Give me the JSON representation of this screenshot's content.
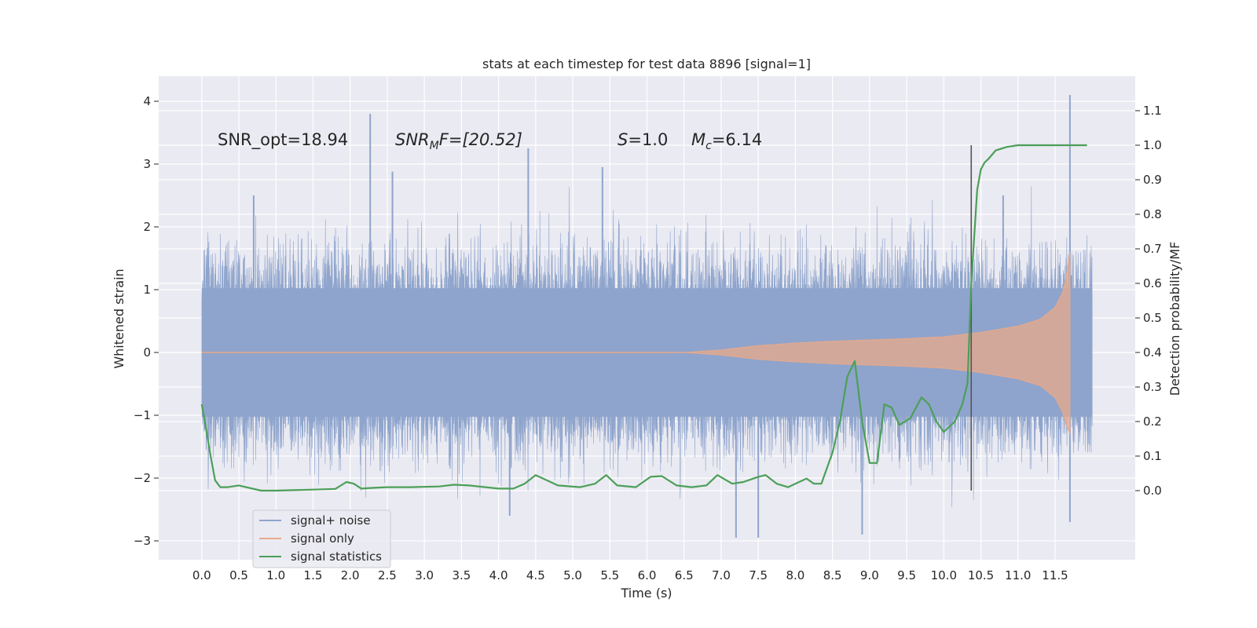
{
  "chart_data": {
    "type": "line",
    "title": "stats at each timestep for test data 8896 [signal=1]",
    "xlabel": "Time (s)",
    "ylabel": "Whitened strain",
    "y2label": "Detection probability/MF",
    "xlim": [
      -0.58,
      12.58
    ],
    "ylim": [
      -3.3,
      4.4
    ],
    "y2lim": [
      -0.2,
      1.2
    ],
    "x_ticks": [
      "0.0",
      "0.5",
      "1.0",
      "1.5",
      "2.0",
      "2.5",
      "3.0",
      "3.5",
      "4.0",
      "4.5",
      "5.0",
      "5.5",
      "6.0",
      "6.5",
      "7.0",
      "7.5",
      "8.0",
      "8.5",
      "9.0",
      "9.5",
      "10.0",
      "10.5",
      "11.0",
      "11.5"
    ],
    "y_ticks": [
      "4",
      "3",
      "2",
      "1",
      "0",
      "−1",
      "−2",
      "−3"
    ],
    "y2_ticks": [
      "1.1",
      "1.0",
      "0.9",
      "0.8",
      "0.7",
      "0.6",
      "0.5",
      "0.4",
      "0.3",
      "0.2",
      "0.1",
      "0.0"
    ],
    "grid": true,
    "legend_position": "lower-left",
    "annotations": {
      "snr_opt": "SNR_opt=18.94",
      "snr_mf_base": "SNR",
      "snr_mf_sub": "M",
      "snr_mf_rest": "F=[20.52]",
      "s_base": "S",
      "s_rest": "=1.0",
      "mc_base": "M",
      "mc_sub": "c",
      "mc_rest": "=6.14"
    },
    "marker_line_x": 10.37,
    "series": [
      {
        "name": "signal+ noise",
        "color": "#8ea4cc",
        "axis": "left",
        "envelope_x": [
          0.0,
          12.0
        ],
        "envelope_upper_typical": 1.1,
        "envelope_lower_typical": -1.1,
        "peaks": [
          [
            2.27,
            3.8
          ],
          [
            11.7,
            4.1
          ],
          [
            4.4,
            3.25
          ],
          [
            2.57,
            2.88
          ],
          [
            5.4,
            2.95
          ],
          [
            0.7,
            2.5
          ],
          [
            10.8,
            2.5
          ],
          [
            7.2,
            -2.95
          ],
          [
            7.5,
            -2.95
          ],
          [
            8.9,
            -2.9
          ],
          [
            11.7,
            -2.7
          ],
          [
            4.15,
            -2.6
          ]
        ]
      },
      {
        "name": "signal only",
        "color": "#e8a98a",
        "axis": "left",
        "x": [
          0,
          6.5,
          7.0,
          7.5,
          8.0,
          8.5,
          9.0,
          9.5,
          10.0,
          10.5,
          11.0,
          11.3,
          11.5,
          11.6,
          11.65,
          11.7
        ],
        "upper": [
          0,
          0.0,
          0.04,
          0.11,
          0.15,
          0.18,
          0.2,
          0.22,
          0.25,
          0.32,
          0.42,
          0.53,
          0.72,
          0.95,
          1.2,
          1.6
        ],
        "lower": [
          0,
          0.0,
          -0.04,
          -0.11,
          -0.15,
          -0.18,
          -0.2,
          -0.22,
          -0.25,
          -0.32,
          -0.42,
          -0.53,
          -0.72,
          -0.95,
          -1.15,
          -1.3
        ]
      },
      {
        "name": "signal statistics",
        "color": "#4c9f58",
        "axis": "right",
        "x": [
          0.0,
          0.05,
          0.12,
          0.18,
          0.25,
          0.35,
          0.5,
          0.8,
          1.0,
          1.5,
          1.8,
          1.95,
          2.05,
          2.15,
          2.3,
          2.5,
          2.8,
          3.2,
          3.4,
          3.6,
          4.0,
          4.2,
          4.35,
          4.5,
          4.8,
          5.1,
          5.3,
          5.45,
          5.6,
          5.85,
          6.05,
          6.2,
          6.4,
          6.6,
          6.8,
          6.95,
          7.15,
          7.3,
          7.5,
          7.6,
          7.75,
          7.9,
          8.0,
          8.15,
          8.25,
          8.35,
          8.5,
          8.6,
          8.7,
          8.8,
          8.9,
          9.0,
          9.1,
          9.2,
          9.3,
          9.4,
          9.55,
          9.7,
          9.8,
          9.9,
          10.0,
          10.15,
          10.25,
          10.32,
          10.37,
          10.45,
          10.5,
          10.55,
          10.6,
          10.7,
          10.85,
          11.0,
          11.15,
          11.5,
          11.93
        ],
        "values": [
          0.25,
          0.19,
          0.1,
          0.03,
          0.01,
          0.01,
          0.015,
          0.0,
          0.0,
          0.003,
          0.005,
          0.025,
          0.02,
          0.006,
          0.008,
          0.01,
          0.01,
          0.012,
          0.017,
          0.015,
          0.006,
          0.006,
          0.02,
          0.045,
          0.015,
          0.01,
          0.02,
          0.045,
          0.015,
          0.01,
          0.04,
          0.042,
          0.015,
          0.01,
          0.015,
          0.045,
          0.02,
          0.025,
          0.04,
          0.045,
          0.02,
          0.01,
          0.02,
          0.035,
          0.02,
          0.02,
          0.11,
          0.2,
          0.33,
          0.375,
          0.2,
          0.08,
          0.08,
          0.25,
          0.24,
          0.19,
          0.21,
          0.27,
          0.25,
          0.2,
          0.17,
          0.2,
          0.25,
          0.31,
          0.6,
          0.87,
          0.93,
          0.95,
          0.96,
          0.985,
          0.995,
          1.0,
          1.0,
          1.0,
          1.0
        ]
      }
    ]
  }
}
